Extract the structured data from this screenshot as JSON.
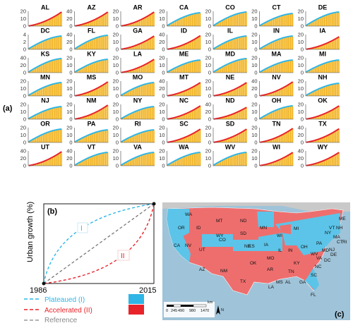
{
  "panel_labels": {
    "a": "(a)",
    "b": "(b)",
    "c": "(c)"
  },
  "colors": {
    "plateaued": "#2FB6E6",
    "accelerated": "#E8232A",
    "bars": "#F2B21C",
    "reference": "#777777",
    "map_water": "#9FC3D8",
    "map_land": "#D9D9D9",
    "map_red": "#EE6E6E",
    "map_blue": "#5CC4E8"
  },
  "chart_data": [
    {
      "type": "bar",
      "description_of_layout": "small multiples",
      "panels": [
        {
          "state": "AL",
          "class": "accelerated",
          "ylim": [
            0,
            20
          ],
          "yticks": [
            0,
            10,
            20
          ],
          "final": 19
        },
        {
          "state": "AZ",
          "class": "accelerated",
          "ylim": [
            0,
            40
          ],
          "yticks": [
            0,
            20,
            40
          ],
          "final": 38
        },
        {
          "state": "AR",
          "class": "accelerated",
          "ylim": [
            0,
            20
          ],
          "yticks": [
            0,
            10,
            20
          ],
          "final": 19
        },
        {
          "state": "CA",
          "class": "plateaued",
          "ylim": [
            0,
            20
          ],
          "yticks": [
            0,
            10,
            20
          ],
          "final": 18
        },
        {
          "state": "CO",
          "class": "plateaued",
          "ylim": [
            0,
            20
          ],
          "yticks": [
            0,
            10,
            20
          ],
          "final": 19
        },
        {
          "state": "CT",
          "class": "plateaued",
          "ylim": [
            0,
            20
          ],
          "yticks": [
            0,
            10,
            20
          ],
          "final": 17
        },
        {
          "state": "DE",
          "class": "plateaued",
          "ylim": [
            0,
            20
          ],
          "yticks": [
            0,
            10,
            20
          ],
          "final": 19
        },
        {
          "state": "DC",
          "class": "plateaued",
          "ylim": [
            0,
            4
          ],
          "yticks": [
            0,
            2,
            4
          ],
          "final": 3.6
        },
        {
          "state": "FL",
          "class": "plateaued",
          "ylim": [
            0,
            40
          ],
          "yticks": [
            0,
            20,
            40
          ],
          "final": 38
        },
        {
          "state": "GA",
          "class": "accelerated",
          "ylim": [
            0,
            20
          ],
          "yticks": [
            0,
            10,
            20
          ],
          "final": 18
        },
        {
          "state": "ID",
          "class": "accelerated",
          "ylim": [
            0,
            40
          ],
          "yticks": [
            0,
            20,
            40
          ],
          "final": 37
        },
        {
          "state": "IL",
          "class": "plateaued",
          "ylim": [
            0,
            20
          ],
          "yticks": [
            0,
            10,
            20
          ],
          "final": 18
        },
        {
          "state": "IN",
          "class": "plateaued",
          "ylim": [
            0,
            20
          ],
          "yticks": [
            0,
            10,
            20
          ],
          "final": 18
        },
        {
          "state": "IA",
          "class": "accelerated",
          "ylim": [
            0,
            20
          ],
          "yticks": [
            0,
            10,
            20
          ],
          "final": 17
        },
        {
          "state": "KS",
          "class": "plateaued",
          "ylim": [
            0,
            40
          ],
          "yticks": [
            0,
            20,
            40
          ],
          "final": 38
        },
        {
          "state": "KY",
          "class": "plateaued",
          "ylim": [
            0,
            20
          ],
          "yticks": [
            0,
            10,
            20
          ],
          "final": 18
        },
        {
          "state": "LA",
          "class": "accelerated",
          "ylim": [
            0,
            20
          ],
          "yticks": [
            0,
            10,
            20
          ],
          "final": 18
        },
        {
          "state": "ME",
          "class": "plateaued",
          "ylim": [
            0,
            20
          ],
          "yticks": [
            0,
            10,
            20
          ],
          "final": 17
        },
        {
          "state": "MD",
          "class": "plateaued",
          "ylim": [
            0,
            20
          ],
          "yticks": [
            0,
            10,
            20
          ],
          "final": 19
        },
        {
          "state": "MA",
          "class": "plateaued",
          "ylim": [
            0,
            20
          ],
          "yticks": [
            0,
            10,
            20
          ],
          "final": 17
        },
        {
          "state": "MI",
          "class": "plateaued",
          "ylim": [
            0,
            20
          ],
          "yticks": [
            0,
            10,
            20
          ],
          "final": 17
        },
        {
          "state": "MN",
          "class": "plateaued",
          "ylim": [
            0,
            20
          ],
          "yticks": [
            0,
            10,
            20
          ],
          "final": 18
        },
        {
          "state": "MS",
          "class": "accelerated",
          "ylim": [
            0,
            20
          ],
          "yticks": [
            0,
            10,
            20
          ],
          "final": 19
        },
        {
          "state": "MO",
          "class": "plateaued",
          "ylim": [
            0,
            20
          ],
          "yticks": [
            0,
            10,
            20
          ],
          "final": 18
        },
        {
          "state": "MT",
          "class": "accelerated",
          "ylim": [
            0,
            40
          ],
          "yticks": [
            0,
            20,
            40
          ],
          "final": 36
        },
        {
          "state": "NE",
          "class": "accelerated",
          "ylim": [
            0,
            20
          ],
          "yticks": [
            0,
            10,
            20
          ],
          "final": 18
        },
        {
          "state": "NV",
          "class": "accelerated",
          "ylim": [
            0,
            40
          ],
          "yticks": [
            0,
            20,
            40
          ],
          "final": 38
        },
        {
          "state": "NH",
          "class": "plateaued",
          "ylim": [
            0,
            20
          ],
          "yticks": [
            0,
            10,
            20
          ],
          "final": 17
        },
        {
          "state": "NJ",
          "class": "plateaued",
          "ylim": [
            0,
            20
          ],
          "yticks": [
            0,
            10,
            20
          ],
          "final": 17
        },
        {
          "state": "NM",
          "class": "accelerated",
          "ylim": [
            0,
            20
          ],
          "yticks": [
            0,
            10,
            20
          ],
          "final": 19
        },
        {
          "state": "NY",
          "class": "plateaued",
          "ylim": [
            0,
            20
          ],
          "yticks": [
            0,
            10,
            20
          ],
          "final": 17
        },
        {
          "state": "NC",
          "class": "accelerated",
          "ylim": [
            0,
            20
          ],
          "yticks": [
            0,
            10,
            20
          ],
          "final": 18
        },
        {
          "state": "ND",
          "class": "accelerated",
          "ylim": [
            0,
            40
          ],
          "yticks": [
            0,
            20,
            40
          ],
          "final": 32
        },
        {
          "state": "OH",
          "class": "plateaued",
          "ylim": [
            0,
            20
          ],
          "yticks": [
            0,
            10,
            20
          ],
          "final": 18
        },
        {
          "state": "OK",
          "class": "accelerated",
          "ylim": [
            0,
            20
          ],
          "yticks": [
            0,
            10,
            20
          ],
          "final": 18
        },
        {
          "state": "OR",
          "class": "plateaued",
          "ylim": [
            0,
            20
          ],
          "yticks": [
            0,
            10,
            20
          ],
          "final": 18
        },
        {
          "state": "PA",
          "class": "plateaued",
          "ylim": [
            0,
            20
          ],
          "yticks": [
            0,
            10,
            20
          ],
          "final": 17
        },
        {
          "state": "RI",
          "class": "plateaued",
          "ylim": [
            0,
            20
          ],
          "yticks": [
            0,
            10,
            20
          ],
          "final": 17
        },
        {
          "state": "SC",
          "class": "accelerated",
          "ylim": [
            0,
            20
          ],
          "yticks": [
            0,
            10,
            20
          ],
          "final": 18
        },
        {
          "state": "SD",
          "class": "accelerated",
          "ylim": [
            0,
            20
          ],
          "yticks": [
            0,
            10,
            20
          ],
          "final": 18
        },
        {
          "state": "TN",
          "class": "accelerated",
          "ylim": [
            0,
            20
          ],
          "yticks": [
            0,
            10,
            20
          ],
          "final": 19
        },
        {
          "state": "TX",
          "class": "accelerated",
          "ylim": [
            0,
            40
          ],
          "yticks": [
            0,
            20,
            40
          ],
          "final": 37
        },
        {
          "state": "UT",
          "class": "accelerated",
          "ylim": [
            0,
            40
          ],
          "yticks": [
            0,
            20,
            40
          ],
          "final": 38
        },
        {
          "state": "VT",
          "class": "plateaued",
          "ylim": [
            0,
            40
          ],
          "yticks": [
            0,
            20,
            40
          ],
          "final": 36
        },
        {
          "state": "VA",
          "class": "plateaued",
          "ylim": [
            0,
            20
          ],
          "yticks": [
            0,
            10,
            20
          ],
          "final": 18
        },
        {
          "state": "WA",
          "class": "plateaued",
          "ylim": [
            0,
            20
          ],
          "yticks": [
            0,
            10,
            20
          ],
          "final": 18
        },
        {
          "state": "WV",
          "class": "plateaued",
          "ylim": [
            0,
            20
          ],
          "yticks": [
            0,
            10,
            20
          ],
          "final": 18
        },
        {
          "state": "WI",
          "class": "accelerated",
          "ylim": [
            0,
            20
          ],
          "yticks": [
            0,
            10,
            20
          ],
          "final": 18
        },
        {
          "state": "WY",
          "class": "accelerated",
          "ylim": [
            0,
            40
          ],
          "yticks": [
            0,
            20,
            40
          ],
          "final": 36
        }
      ]
    },
    {
      "type": "line",
      "ylabel": "Urban growth (%)",
      "x": [
        1986,
        2015
      ],
      "xtick_labels": [
        "1986",
        "2015"
      ],
      "series": [
        {
          "name": "Plateaued (I)",
          "style": "dashed",
          "color": "#2FB6E6",
          "shape": "concave",
          "label": "I"
        },
        {
          "name": "Accelerated (II)",
          "style": "dashed",
          "color": "#E8232A",
          "shape": "convex",
          "label": "II"
        },
        {
          "name": "Reference",
          "style": "dashed",
          "color": "#777777",
          "shape": "linear"
        }
      ],
      "legend": [
        {
          "text": "Plateaued (I)",
          "swatch": "#2FB6E6"
        },
        {
          "text": "Accelerated (II)",
          "swatch": "#E8232A"
        },
        {
          "text": "Reference"
        }
      ]
    }
  ],
  "map": {
    "scale_labels": [
      "0",
      "245",
      "490",
      "980",
      "1470"
    ],
    "scale_unit": "km",
    "north": "N",
    "labels": [
      {
        "t": "WA",
        "c": "plateaued"
      },
      {
        "t": "OR",
        "c": "plateaued"
      },
      {
        "t": "CA",
        "c": "plateaued"
      },
      {
        "t": "ID",
        "c": "accelerated"
      },
      {
        "t": "NV",
        "c": "accelerated"
      },
      {
        "t": "MT",
        "c": "accelerated"
      },
      {
        "t": "WY",
        "c": "accelerated"
      },
      {
        "t": "UT",
        "c": "accelerated"
      },
      {
        "t": "AZ",
        "c": "accelerated"
      },
      {
        "t": "CO",
        "c": "plateaued"
      },
      {
        "t": "NM",
        "c": "accelerated"
      },
      {
        "t": "ND",
        "c": "accelerated"
      },
      {
        "t": "SD",
        "c": "accelerated"
      },
      {
        "t": "NE",
        "c": "accelerated"
      },
      {
        "t": "KS",
        "c": "plateaued"
      },
      {
        "t": "OK",
        "c": "accelerated"
      },
      {
        "t": "TX",
        "c": "accelerated"
      },
      {
        "t": "MN",
        "c": "plateaued"
      },
      {
        "t": "IA",
        "c": "accelerated"
      },
      {
        "t": "MO",
        "c": "plateaued"
      },
      {
        "t": "AR",
        "c": "accelerated"
      },
      {
        "t": "LA",
        "c": "accelerated"
      },
      {
        "t": "WI",
        "c": "accelerated"
      },
      {
        "t": "IL",
        "c": "plateaued"
      },
      {
        "t": "MS",
        "c": "accelerated"
      },
      {
        "t": "MI",
        "c": "plateaued"
      },
      {
        "t": "IN",
        "c": "plateaued"
      },
      {
        "t": "KY",
        "c": "plateaued"
      },
      {
        "t": "TN",
        "c": "accelerated"
      },
      {
        "t": "AL",
        "c": "accelerated"
      },
      {
        "t": "OH",
        "c": "plateaued"
      },
      {
        "t": "GA",
        "c": "accelerated"
      },
      {
        "t": "FL",
        "c": "plateaued"
      },
      {
        "t": "SC",
        "c": "accelerated"
      },
      {
        "t": "NC",
        "c": "accelerated"
      },
      {
        "t": "VA",
        "c": "plateaued"
      },
      {
        "t": "WV",
        "c": "plateaued"
      },
      {
        "t": "PA",
        "c": "plateaued"
      },
      {
        "t": "NY",
        "c": "plateaued"
      },
      {
        "t": "VT",
        "c": "plateaued"
      },
      {
        "t": "NH",
        "c": "plateaued"
      },
      {
        "t": "ME",
        "c": "plateaued"
      },
      {
        "t": "MA",
        "c": "plateaued"
      },
      {
        "t": "CT",
        "c": "plateaued"
      },
      {
        "t": "RI",
        "c": "plateaued"
      },
      {
        "t": "NJ",
        "c": "plateaued"
      },
      {
        "t": "DE",
        "c": "plateaued"
      },
      {
        "t": "MD",
        "c": "plateaued"
      },
      {
        "t": "DC",
        "c": "plateaued"
      }
    ]
  }
}
